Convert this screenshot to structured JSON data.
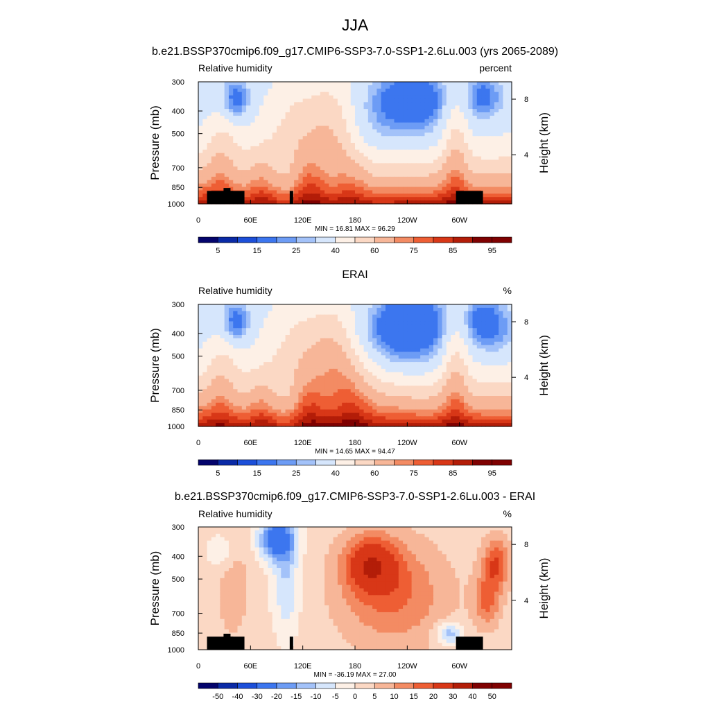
{
  "figure": {
    "title": "JJA",
    "subtitle": "b.e21.BSSP370cmip6.f09_g17.CMIP6-SSP3-7.0-SSP1-2.6Lu.003 (yrs 2065-2089)"
  },
  "colors": {
    "abs_scale": [
      "#04046c",
      "#0a2aa6",
      "#1c4fd9",
      "#3c76ef",
      "#6d9cf5",
      "#a3c2f9",
      "#d6e6fc",
      "#fdf0e6",
      "#fbd8c4",
      "#f7b698",
      "#f38b63",
      "#ee5e34",
      "#d83717",
      "#b31d08",
      "#7f0101"
    ],
    "diff_scale": [
      "#04046c",
      "#0a2aa6",
      "#1c4fd9",
      "#3c76ef",
      "#6d9cf5",
      "#a3c2f9",
      "#d6e6fc",
      "#fdf0e6",
      "#fbd8c4",
      "#f7b698",
      "#f38b63",
      "#ee5e34",
      "#d83717",
      "#b31d08",
      "#7f0101"
    ],
    "terrain": "#000000"
  },
  "chart_data": [
    {
      "type": "heatmap",
      "title": "",
      "left_label": "Relative humidity",
      "right_label": "percent",
      "ylabel": "Pressure (mb)",
      "y2label": "Height (km)",
      "yticks": [
        "300",
        "400",
        "500",
        "700",
        "850",
        "1000"
      ],
      "y2ticks": [
        "8",
        "4"
      ],
      "xticks": [
        "0",
        "60E",
        "120E",
        "180",
        "120W",
        "60W"
      ],
      "stats": "MIN =  16.81  MAX =  96.29",
      "colorbar_labels": [
        "5",
        "15",
        "25",
        "40",
        "60",
        "75",
        "85",
        "95"
      ],
      "levels": [
        5,
        10,
        15,
        20,
        25,
        30,
        40,
        50,
        60,
        70,
        75,
        80,
        85,
        90,
        95
      ],
      "min": 16.81,
      "max": 96.29
    },
    {
      "type": "heatmap",
      "title": "ERAI",
      "left_label": "Relative humidity",
      "right_label": "%",
      "ylabel": "Pressure (mb)",
      "y2label": "Height (km)",
      "yticks": [
        "300",
        "400",
        "500",
        "700",
        "850",
        "1000"
      ],
      "y2ticks": [
        "8",
        "4"
      ],
      "xticks": [
        "0",
        "60E",
        "120E",
        "180",
        "120W",
        "60W"
      ],
      "stats": "MIN =  14.65  MAX =  94.47",
      "colorbar_labels": [
        "5",
        "15",
        "25",
        "40",
        "60",
        "75",
        "85",
        "95"
      ],
      "levels": [
        5,
        10,
        15,
        20,
        25,
        30,
        40,
        50,
        60,
        70,
        75,
        80,
        85,
        90,
        95
      ],
      "min": 14.65,
      "max": 94.47
    },
    {
      "type": "heatmap",
      "title": "b.e21.BSSP370cmip6.f09_g17.CMIP6-SSP3-7.0-SSP1-2.6Lu.003 - ERAI",
      "left_label": "Relative humidity",
      "right_label": "%",
      "ylabel": "Pressure (mb)",
      "y2label": "Height (km)",
      "yticks": [
        "300",
        "400",
        "500",
        "700",
        "850",
        "1000"
      ],
      "y2ticks": [
        "8",
        "4"
      ],
      "xticks": [
        "0",
        "60E",
        "120E",
        "180",
        "120W",
        "60W"
      ],
      "stats": "MIN = -36.19  MAX =  27.00",
      "colorbar_labels": [
        "-50",
        "-40",
        "-30",
        "-20",
        "-15",
        "-10",
        "-5",
        "0",
        "5",
        "10",
        "15",
        "20",
        "30",
        "40",
        "50"
      ],
      "levels": [
        -50,
        -40,
        -30,
        -20,
        -15,
        -10,
        -5,
        0,
        5,
        10,
        15,
        20,
        30,
        40,
        50
      ],
      "min": -36.19,
      "max": 27.0
    }
  ]
}
